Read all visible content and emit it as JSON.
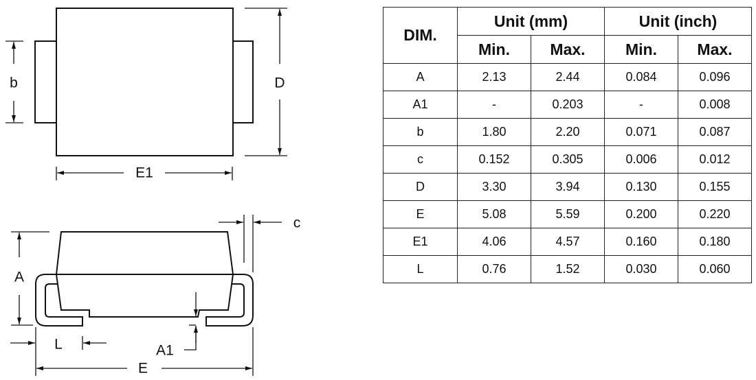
{
  "drawing": {
    "top_view_labels": {
      "b": "b",
      "D": "D",
      "E1": "E1"
    },
    "side_view_labels": {
      "c": "c",
      "A": "A",
      "A1": "A1",
      "L": "L",
      "E": "E"
    }
  },
  "table": {
    "dim_header": "DIM.",
    "group_headers": [
      "Unit (mm)",
      "Unit (inch)"
    ],
    "sub_headers": [
      "Min.",
      "Max.",
      "Min.",
      "Max."
    ],
    "rows": [
      [
        "A",
        "2.13",
        "2.44",
        "0.084",
        "0.096"
      ],
      [
        "A1",
        "-",
        "0.203",
        "-",
        "0.008"
      ],
      [
        "b",
        "1.80",
        "2.20",
        "0.071",
        "0.087"
      ],
      [
        "c",
        "0.152",
        "0.305",
        "0.006",
        "0.012"
      ],
      [
        "D",
        "3.30",
        "3.94",
        "0.130",
        "0.155"
      ],
      [
        "E",
        "5.08",
        "5.59",
        "0.200",
        "0.220"
      ],
      [
        "E1",
        "4.06",
        "4.57",
        "0.160",
        "0.180"
      ],
      [
        "L",
        "0.76",
        "1.52",
        "0.030",
        "0.060"
      ]
    ]
  }
}
